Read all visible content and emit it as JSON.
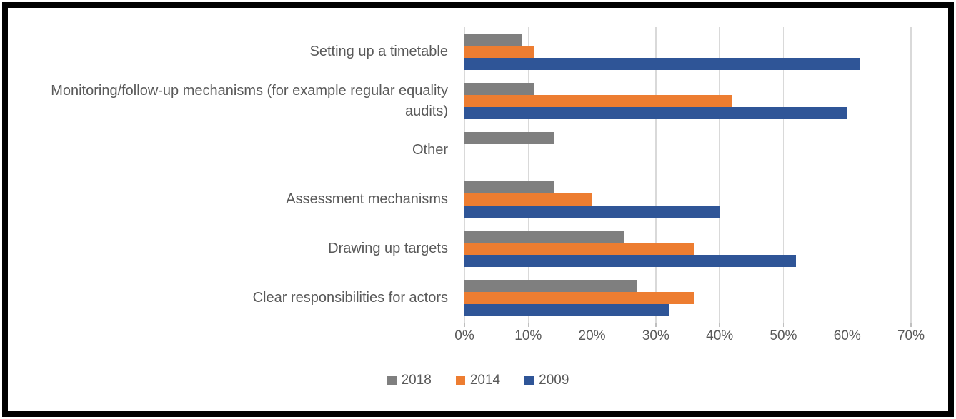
{
  "frame": {
    "border_color": "#000000",
    "background": "#FFFFFF"
  },
  "chart_data": {
    "type": "bar",
    "orientation": "horizontal",
    "title": "",
    "categories": [
      "Setting up a timetable",
      "Monitoring/follow-up mechanisms (for example regular equality audits)",
      "Other",
      "Assessment mechanisms",
      "Drawing up targets",
      "Clear responsibilities for actors"
    ],
    "series": [
      {
        "name": "2018",
        "color": "#7F7F7F",
        "values": [
          9,
          11,
          14,
          14,
          25,
          27
        ]
      },
      {
        "name": "2014",
        "color": "#ED7D31",
        "values": [
          11,
          42,
          0,
          20,
          36,
          36
        ]
      },
      {
        "name": "2009",
        "color": "#2F5597",
        "values": [
          62,
          60,
          0,
          40,
          52,
          32
        ]
      }
    ],
    "x_axis": {
      "min": 0,
      "max": 70,
      "tick_step": 10,
      "unit": "%",
      "tick_labels": [
        "0%",
        "10%",
        "20%",
        "30%",
        "40%",
        "50%",
        "60%",
        "70%"
      ]
    },
    "legend": {
      "position": "bottom",
      "entries": [
        "2018",
        "2014",
        "2009"
      ]
    },
    "style": {
      "gridline_color": "#D9D9D9",
      "tick_color": "#BFBFBF",
      "text_color": "#595959"
    }
  }
}
